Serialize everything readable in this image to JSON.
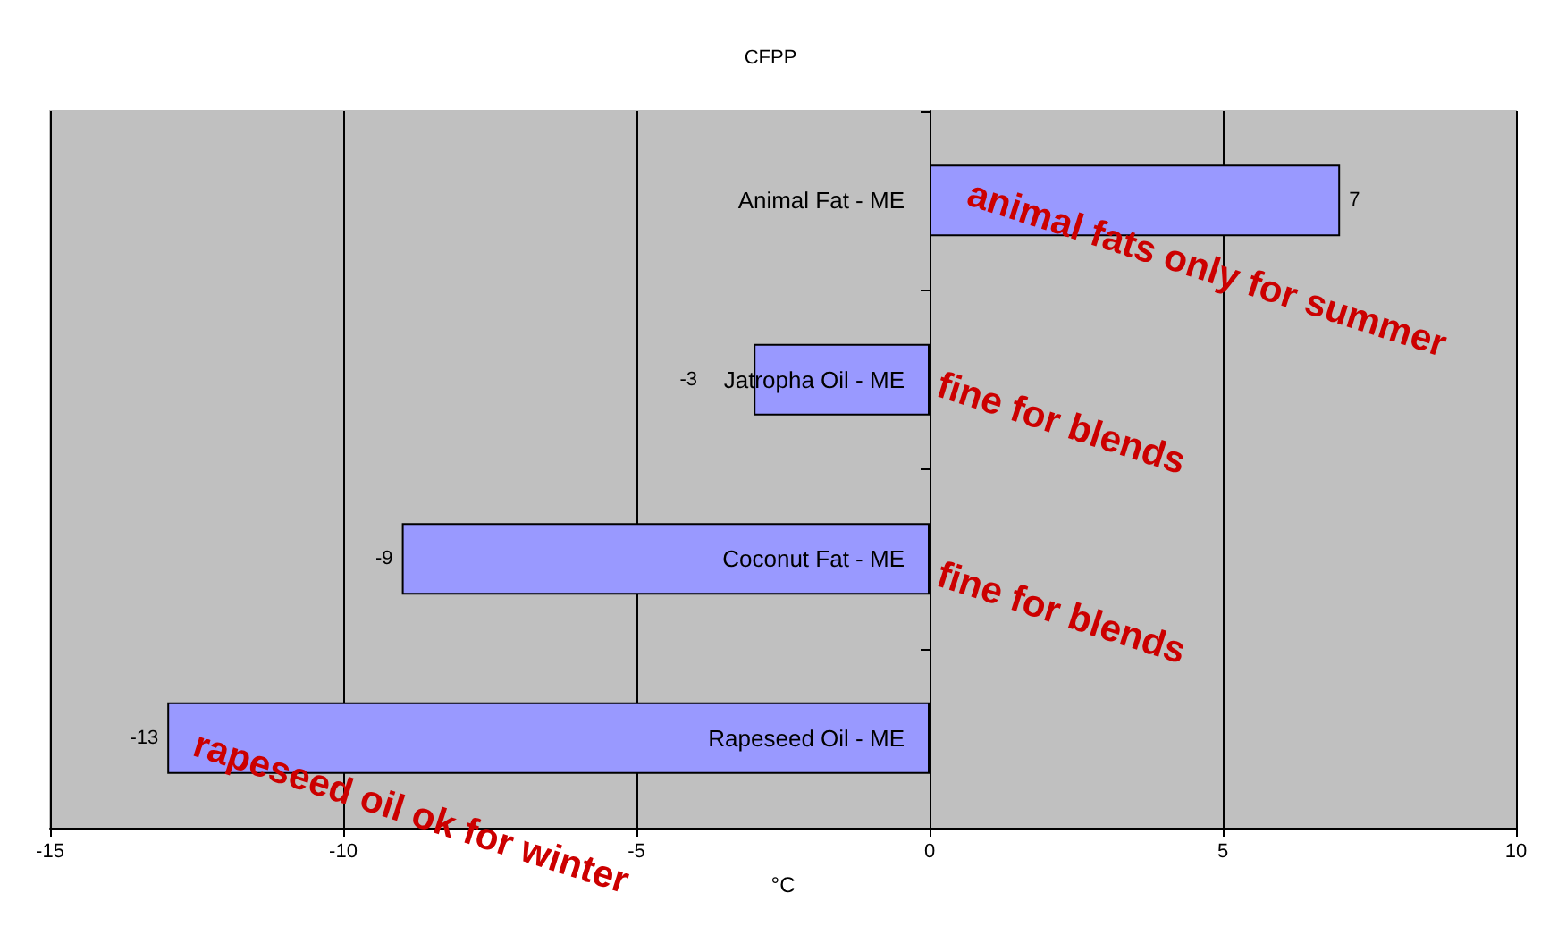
{
  "chart_data": {
    "type": "bar",
    "orientation": "horizontal",
    "title": "CFPP",
    "xlabel": "°C",
    "categories": [
      "Animal Fat - ME",
      "Jatropha Oil - ME",
      "Coconut Fat - ME",
      "Rapeseed Oil - ME"
    ],
    "values": [
      7,
      -3,
      -9,
      -13
    ],
    "color": "#9999ff",
    "data_labels": true,
    "xlim": [
      -15,
      10
    ],
    "xticks": [
      -15,
      -10,
      -5,
      0,
      5,
      10
    ],
    "grid": "x",
    "annotations": [
      "animal fats only for summer",
      "fine for blends",
      "fine for blends",
      "rapeseed oil ok for winter"
    ]
  }
}
